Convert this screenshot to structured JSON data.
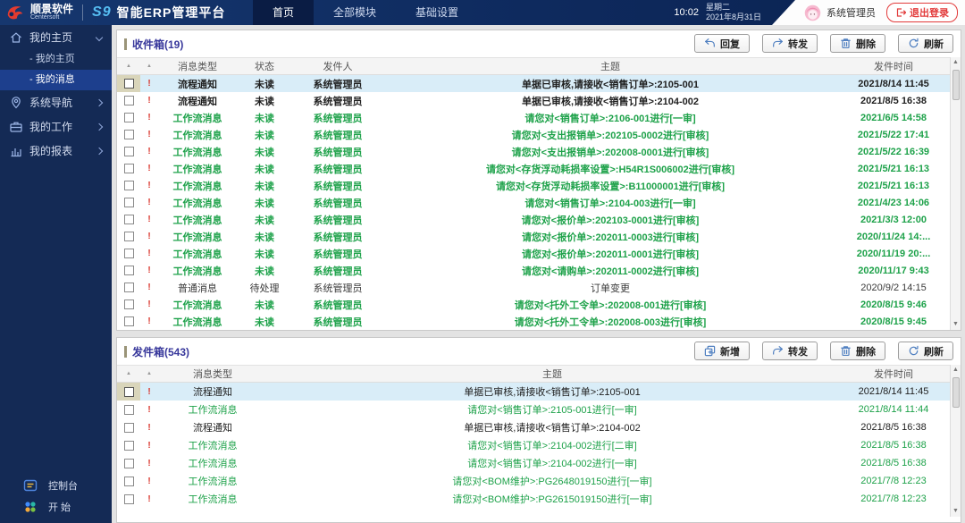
{
  "header": {
    "logo_cn": "顺景软件",
    "logo_en": "Centersoft",
    "product_logo": "S9",
    "app_title": "智能ERP管理平台",
    "nav": [
      {
        "label": "首页",
        "active": true
      },
      {
        "label": "全部模块",
        "active": false
      },
      {
        "label": "基础设置",
        "active": false
      }
    ],
    "time": "10:02",
    "weekday": "星期二",
    "date": "2021年8月31日",
    "user": "系统管理员",
    "logout_label": "退出登录"
  },
  "sidebar": {
    "items": [
      {
        "label": "我的主页",
        "icon": "home",
        "expanded": true,
        "children": [
          {
            "label": "我的主页",
            "selected": false
          },
          {
            "label": "我的消息",
            "selected": true
          }
        ]
      },
      {
        "label": "系统导航",
        "icon": "nav",
        "expanded": false,
        "children": []
      },
      {
        "label": "我的工作",
        "icon": "work",
        "expanded": false,
        "children": []
      },
      {
        "label": "我的报表",
        "icon": "report",
        "expanded": false,
        "children": []
      }
    ],
    "footer": [
      {
        "label": "控制台",
        "icon": "console"
      },
      {
        "label": "开 始",
        "icon": "start"
      }
    ]
  },
  "inbox": {
    "title": "收件箱(19)",
    "buttons": [
      {
        "label": "回复",
        "icon": "reply"
      },
      {
        "label": "转发",
        "icon": "forward"
      },
      {
        "label": "删除",
        "icon": "trash"
      },
      {
        "label": "刷新",
        "icon": "refresh"
      }
    ],
    "columns": [
      "消息类型",
      "状态",
      "发件人",
      "主题",
      "发件时间"
    ],
    "rows": [
      {
        "cells": [
          "流程通知",
          "未读",
          "系统管理员",
          "单据已审核,请接收<销售订单>:2105-001",
          "2021/8/14 11:45"
        ],
        "tone": "dark",
        "bold": true,
        "selected": true
      },
      {
        "cells": [
          "流程通知",
          "未读",
          "系统管理员",
          "单据已审核,请接收<销售订单>:2104-002",
          "2021/8/5 16:38"
        ],
        "tone": "dark",
        "bold": true,
        "selected": false
      },
      {
        "cells": [
          "工作流消息",
          "未读",
          "系统管理员",
          "请您对<销售订单>:2106-001进行[一审]",
          "2021/6/5 14:58"
        ],
        "tone": "green",
        "bold": true,
        "selected": false
      },
      {
        "cells": [
          "工作流消息",
          "未读",
          "系统管理员",
          "请您对<支出报销单>:202105-0002进行[审核]",
          "2021/5/22 17:41"
        ],
        "tone": "green",
        "bold": true,
        "selected": false
      },
      {
        "cells": [
          "工作流消息",
          "未读",
          "系统管理员",
          "请您对<支出报销单>:202008-0001进行[审核]",
          "2021/5/22 16:39"
        ],
        "tone": "green",
        "bold": true,
        "selected": false
      },
      {
        "cells": [
          "工作流消息",
          "未读",
          "系统管理员",
          "请您对<存货浮动耗损率设置>:H54R1S006002进行[审核]",
          "2021/5/21 16:13"
        ],
        "tone": "green",
        "bold": true,
        "selected": false
      },
      {
        "cells": [
          "工作流消息",
          "未读",
          "系统管理员",
          "请您对<存货浮动耗损率设置>:B11000001进行[审核]",
          "2021/5/21 16:13"
        ],
        "tone": "green",
        "bold": true,
        "selected": false
      },
      {
        "cells": [
          "工作流消息",
          "未读",
          "系统管理员",
          "请您对<销售订单>:2104-003进行[一审]",
          "2021/4/23 14:06"
        ],
        "tone": "green",
        "bold": true,
        "selected": false
      },
      {
        "cells": [
          "工作流消息",
          "未读",
          "系统管理员",
          "请您对<报价单>:202103-0001进行[审核]",
          "2021/3/3 12:00"
        ],
        "tone": "green",
        "bold": true,
        "selected": false
      },
      {
        "cells": [
          "工作流消息",
          "未读",
          "系统管理员",
          "请您对<报价单>:202011-0003进行[审核]",
          "2020/11/24 14:..."
        ],
        "tone": "green",
        "bold": true,
        "selected": false
      },
      {
        "cells": [
          "工作流消息",
          "未读",
          "系统管理员",
          "请您对<报价单>:202011-0001进行[审核]",
          "2020/11/19 20:..."
        ],
        "tone": "green",
        "bold": true,
        "selected": false
      },
      {
        "cells": [
          "工作流消息",
          "未读",
          "系统管理员",
          "请您对<请购单>:202011-0002进行[审核]",
          "2020/11/17 9:43"
        ],
        "tone": "green",
        "bold": true,
        "selected": false
      },
      {
        "cells": [
          "普通消息",
          "待处理",
          "系统管理员",
          "订单变更",
          "2020/9/2 14:15"
        ],
        "tone": "plain",
        "bold": false,
        "selected": false
      },
      {
        "cells": [
          "工作流消息",
          "未读",
          "系统管理员",
          "请您对<托外工令单>:202008-001进行[审核]",
          "2020/8/15 9:46"
        ],
        "tone": "green",
        "bold": true,
        "selected": false
      },
      {
        "cells": [
          "工作流消息",
          "未读",
          "系统管理员",
          "请您对<托外工令单>:202008-003进行[审核]",
          "2020/8/15 9:45"
        ],
        "tone": "green",
        "bold": true,
        "selected": false
      }
    ]
  },
  "outbox": {
    "title": "发件箱(543)",
    "buttons": [
      {
        "label": "新增",
        "icon": "add"
      },
      {
        "label": "转发",
        "icon": "forward"
      },
      {
        "label": "删除",
        "icon": "trash"
      },
      {
        "label": "刷新",
        "icon": "refresh"
      }
    ],
    "columns": [
      "消息类型",
      "主题",
      "发件时间"
    ],
    "rows": [
      {
        "cells": [
          "流程通知",
          "单据已审核,请接收<销售订单>:2105-001",
          "2021/8/14 11:45"
        ],
        "tone": "dark",
        "bold": false,
        "selected": true
      },
      {
        "cells": [
          "工作流消息",
          "请您对<销售订单>:2105-001进行[一审]",
          "2021/8/14 11:44"
        ],
        "tone": "green",
        "bold": false,
        "selected": false
      },
      {
        "cells": [
          "流程通知",
          "单据已审核,请接收<销售订单>:2104-002",
          "2021/8/5 16:38"
        ],
        "tone": "dark",
        "bold": false,
        "selected": false
      },
      {
        "cells": [
          "工作流消息",
          "请您对<销售订单>:2104-002进行[二审]",
          "2021/8/5 16:38"
        ],
        "tone": "green",
        "bold": false,
        "selected": false
      },
      {
        "cells": [
          "工作流消息",
          "请您对<销售订单>:2104-002进行[一审]",
          "2021/8/5 16:38"
        ],
        "tone": "green",
        "bold": false,
        "selected": false
      },
      {
        "cells": [
          "工作流消息",
          "请您对<BOM维护>:PG2648019150进行[一审]",
          "2021/7/8 12:23"
        ],
        "tone": "green",
        "bold": false,
        "selected": false
      },
      {
        "cells": [
          "工作流消息",
          "请您对<BOM维护>:PG2615019150进行[一审]",
          "2021/7/8 12:23"
        ],
        "tone": "green",
        "bold": false,
        "selected": false
      }
    ]
  },
  "colors": {
    "header_bg": "#0e2a5e",
    "sidebar_bg": "#142a55",
    "selected_row_bg": "#d9edf8",
    "green_text": "#1ea24a",
    "title_text": "#37379b",
    "flag_red": "#d9342b",
    "logout_red": "#e23b3b",
    "s9_blue": "#56bdf2"
  }
}
